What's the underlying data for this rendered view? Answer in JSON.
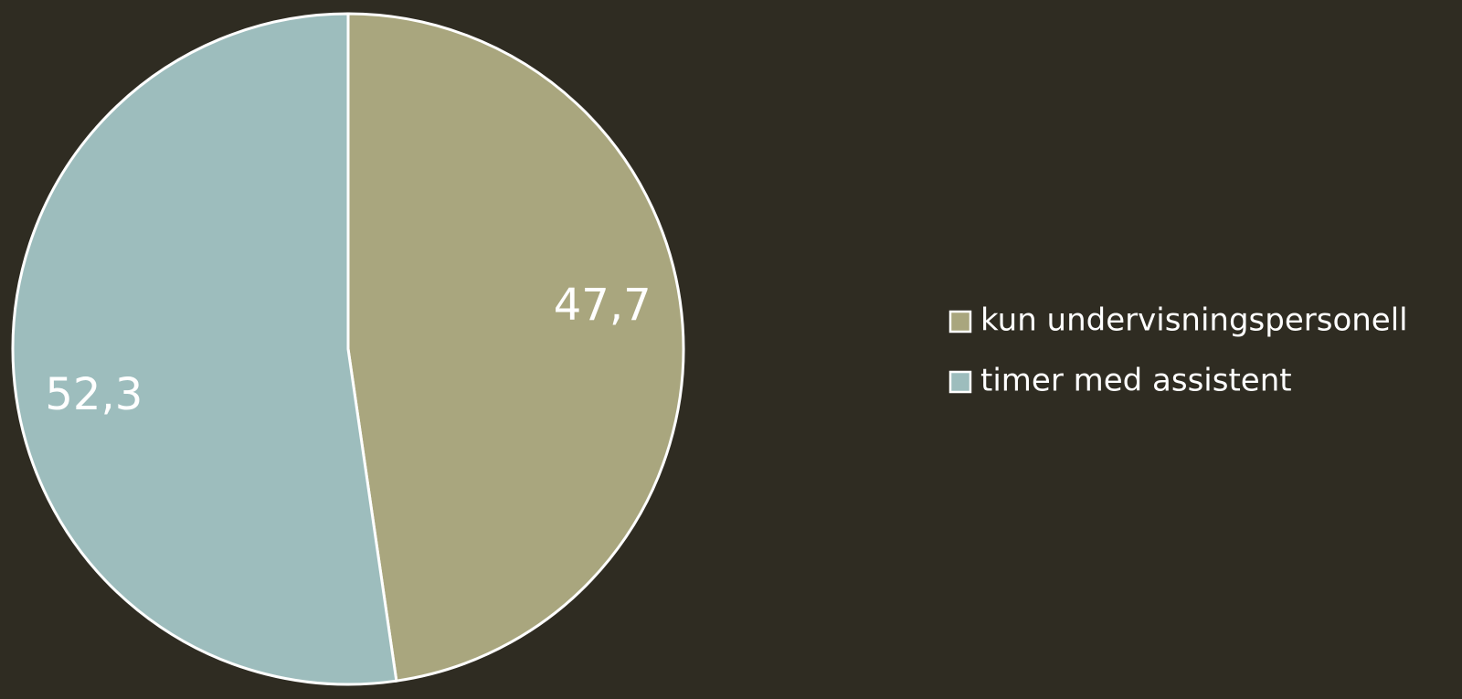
{
  "chart_data": {
    "type": "pie",
    "categories": [
      "kun undervisningspersonell",
      "timer med assistent"
    ],
    "values": [
      47.7,
      52.3
    ],
    "value_labels": [
      "47,7",
      "52,3"
    ],
    "colors": [
      "#a9a67e",
      "#9dbdbd"
    ],
    "legend": "right"
  }
}
